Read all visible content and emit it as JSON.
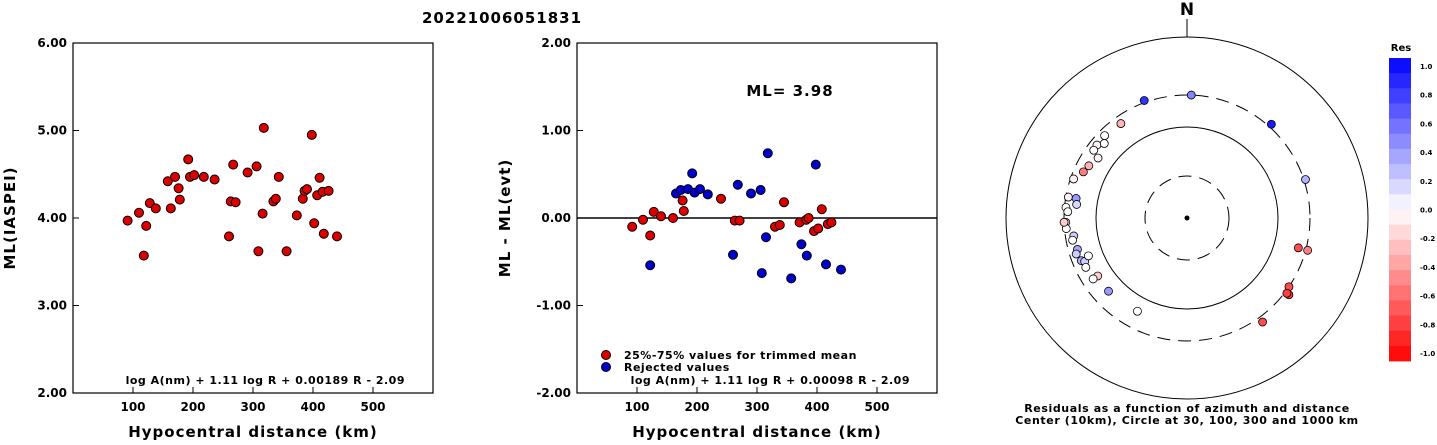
{
  "header": {
    "event_id": "20221006051831"
  },
  "chart_data": [
    {
      "type": "scatter",
      "xlabel": "Hypocentral distance (km)",
      "ylabel": "ML(IASPEI)",
      "xlim": [
        0,
        600
      ],
      "ylim": [
        2.0,
        6.0
      ],
      "xticks": [
        "100",
        "200",
        "300",
        "400",
        "500"
      ],
      "yticks": [
        "2.00",
        "3.00",
        "4.00",
        "5.00",
        "6.00"
      ],
      "formula": "log A(nm) + 1.11 log R + 0.00189 R - 2.09",
      "series": [
        {
          "color": "#dd0000",
          "points": [
            [
              91,
              3.97
            ],
            [
              110,
              4.06
            ],
            [
              118,
              3.57
            ],
            [
              122,
              3.91
            ],
            [
              128,
              4.17
            ],
            [
              138,
              4.11
            ],
            [
              158,
              4.42
            ],
            [
              163,
              4.11
            ],
            [
              170,
              4.47
            ],
            [
              176,
              4.34
            ],
            [
              178,
              4.21
            ],
            [
              192,
              4.67
            ],
            [
              195,
              4.47
            ],
            [
              202,
              4.49
            ],
            [
              218,
              4.47
            ],
            [
              236,
              4.44
            ],
            [
              260,
              3.79
            ],
            [
              263,
              4.19
            ],
            [
              267,
              4.61
            ],
            [
              271,
              4.18
            ],
            [
              291,
              4.52
            ],
            [
              306,
              4.59
            ],
            [
              309,
              3.62
            ],
            [
              316,
              4.05
            ],
            [
              318,
              5.03
            ],
            [
              334,
              4.19
            ],
            [
              338,
              4.22
            ],
            [
              343,
              4.47
            ],
            [
              356,
              3.62
            ],
            [
              373,
              4.03
            ],
            [
              383,
              4.22
            ],
            [
              386,
              4.31
            ],
            [
              390,
              4.33
            ],
            [
              398,
              4.95
            ],
            [
              402,
              3.94
            ],
            [
              407,
              4.26
            ],
            [
              411,
              4.46
            ],
            [
              416,
              4.3
            ],
            [
              418,
              3.82
            ],
            [
              426,
              4.31
            ],
            [
              440,
              3.79
            ]
          ]
        }
      ]
    },
    {
      "type": "scatter",
      "xlabel": "Hypocentral distance (km)",
      "ylabel": "ML - ML(evt)",
      "xlim": [
        0,
        600
      ],
      "ylim": [
        -2.0,
        2.0
      ],
      "xticks": [
        "100",
        "200",
        "300",
        "400",
        "500"
      ],
      "yticks": [
        "-2.00",
        "-1.00",
        "0.00",
        "1.00",
        "2.00"
      ],
      "hline": 0,
      "annotation": "ML= 3.98",
      "formula": "log A(nm) + 1.11 log R + 0.00098 R - 2.09",
      "legend_entries": [
        "25%-75% values for trimmed mean",
        "Rejected values"
      ],
      "series": [
        {
          "name": "25%-75% values for trimmed mean",
          "color": "#dd0000",
          "points": [
            [
              92,
              -0.1
            ],
            [
              110,
              -0.02
            ],
            [
              122,
              -0.2
            ],
            [
              128,
              0.07
            ],
            [
              140,
              0.02
            ],
            [
              160,
              0.0
            ],
            [
              176,
              0.2
            ],
            [
              178,
              0.08
            ],
            [
              240,
              0.22
            ],
            [
              263,
              -0.03
            ],
            [
              271,
              -0.03
            ],
            [
              330,
              -0.1
            ],
            [
              338,
              -0.08
            ],
            [
              345,
              0.18
            ],
            [
              371,
              -0.05
            ],
            [
              382,
              -0.02
            ],
            [
              386,
              0.0
            ],
            [
              395,
              -0.15
            ],
            [
              402,
              -0.12
            ],
            [
              408,
              0.1
            ],
            [
              418,
              -0.07
            ],
            [
              424,
              -0.05
            ]
          ]
        },
        {
          "name": "Rejected values",
          "color": "#0000cc",
          "points": [
            [
              122,
              -0.54
            ],
            [
              165,
              0.28
            ],
            [
              173,
              0.32
            ],
            [
              185,
              0.33
            ],
            [
              192,
              0.51
            ],
            [
              196,
              0.29
            ],
            [
              205,
              0.33
            ],
            [
              218,
              0.27
            ],
            [
              260,
              -0.42
            ],
            [
              268,
              0.38
            ],
            [
              290,
              0.28
            ],
            [
              306,
              0.32
            ],
            [
              308,
              -0.63
            ],
            [
              315,
              -0.22
            ],
            [
              318,
              0.74
            ],
            [
              357,
              -0.69
            ],
            [
              374,
              -0.3
            ],
            [
              383,
              -0.43
            ],
            [
              398,
              0.61
            ],
            [
              415,
              -0.53
            ],
            [
              440,
              -0.59
            ]
          ]
        }
      ]
    },
    {
      "type": "polar-scatter",
      "north_label": "N",
      "caption_line1": "Residuals as a function of azimuth and distance",
      "caption_line2": "Center (10km), Circle at 30, 100, 300 and 1000 km",
      "colorbar": {
        "title": "Res",
        "labels": [
          "1.0",
          "0.8",
          "0.6",
          "0.4",
          "0.2",
          "0.0",
          "-0.2",
          "-0.4",
          "-0.6",
          "-0.8",
          "-1.0"
        ],
        "positive_color": "#0000ff",
        "negative_color": "#ff0000"
      },
      "stations": [
        {
          "az": 2,
          "dist": 300,
          "res": 0.48
        },
        {
          "az": -20,
          "dist": 313,
          "res": 0.8
        },
        {
          "az": 42,
          "dist": 320,
          "res": 0.9
        },
        {
          "az": -45,
          "dist": 240,
          "res": 0.0
        },
        {
          "az": -62,
          "dist": 200,
          "res": -0.3
        },
        {
          "az": -35,
          "dist": 230,
          "res": -0.3
        },
        {
          "az": -51,
          "dist": 235,
          "res": -0.05
        },
        {
          "az": -54,
          "dist": 230,
          "res": 0.0
        },
        {
          "az": -48,
          "dist": 201,
          "res": 0.0
        },
        {
          "az": -56,
          "dist": 175,
          "res": -0.05
        },
        {
          "az": -66,
          "dist": 216,
          "res": -0.5
        },
        {
          "az": -71,
          "dist": 270,
          "res": -0.05
        },
        {
          "az": -80,
          "dist": 275,
          "res": -0.05
        },
        {
          "az": -85,
          "dist": 285,
          "res": 0.0
        },
        {
          "az": -87,
          "dist": 265,
          "res": 0.0
        },
        {
          "az": -92,
          "dist": 283,
          "res": -0.1
        },
        {
          "az": -95,
          "dist": 282,
          "res": 0.0
        },
        {
          "az": -92,
          "dist": 300,
          "res": -0.2
        },
        {
          "az": -80,
          "dist": 210,
          "res": 0.4
        },
        {
          "az": -83,
          "dist": 200,
          "res": 0.15
        },
        {
          "az": -99,
          "dist": 225,
          "res": 0.2
        },
        {
          "az": -101,
          "dist": 240,
          "res": 0.0
        },
        {
          "az": -106,
          "dist": 220,
          "res": 0.35
        },
        {
          "az": -108,
          "dist": 240,
          "res": 0.2
        },
        {
          "az": -112,
          "dist": 220,
          "res": 0.3
        },
        {
          "az": -113,
          "dist": 200,
          "res": 0.2
        },
        {
          "az": -116,
          "dist": 210,
          "res": 0.0
        },
        {
          "az": -111,
          "dist": 165,
          "res": 0.0
        },
        {
          "az": -123,
          "dist": 170,
          "res": -0.2
        },
        {
          "az": -123,
          "dist": 205,
          "res": 0.0
        },
        {
          "az": -133,
          "dist": 175,
          "res": 0.4
        },
        {
          "az": -152,
          "dist": 165,
          "res": 0.0
        },
        {
          "az": 72,
          "dist": 310,
          "res": 0.3
        },
        {
          "az": 105,
          "dist": 230,
          "res": -0.7
        },
        {
          "az": 105,
          "dist": 312,
          "res": -0.5
        },
        {
          "az": 124,
          "dist": 300,
          "res": -0.7
        },
        {
          "az": 127,
          "dist": 330,
          "res": -0.8
        },
        {
          "az": 127,
          "dist": 313,
          "res": -0.75
        },
        {
          "az": 144,
          "dist": 337,
          "res": -0.7
        }
      ]
    }
  ]
}
